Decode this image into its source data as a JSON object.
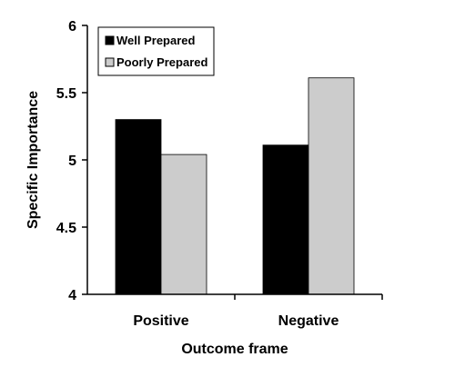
{
  "chart_data": {
    "type": "bar",
    "title": "",
    "xlabel": "Outcome frame",
    "ylabel": "Specific Importance",
    "categories": [
      "Positive",
      "Negative"
    ],
    "series": [
      {
        "name": "Well Prepared",
        "values": [
          5.3,
          5.11
        ],
        "color": "#000000"
      },
      {
        "name": "Poorly Prepared",
        "values": [
          5.04,
          5.61
        ],
        "color": "#cccccc"
      }
    ],
    "ylim": [
      4,
      6
    ],
    "yticks": [
      "4",
      "4.5",
      "5",
      "5.5",
      "6"
    ],
    "grid": false,
    "legend_position": "top-left"
  }
}
